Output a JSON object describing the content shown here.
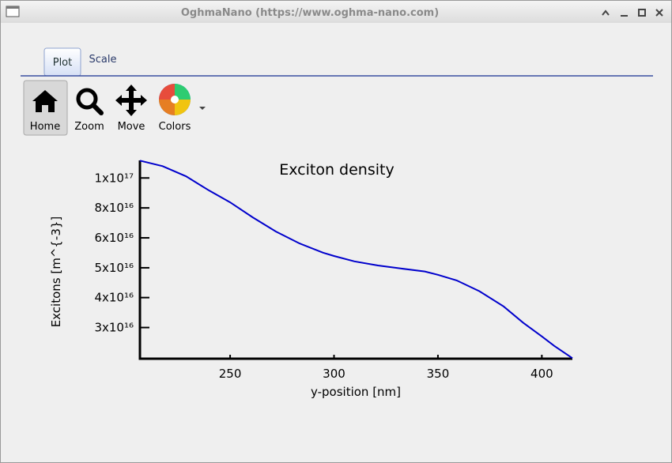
{
  "window": {
    "title": "OghmaNano (https://www.oghma-nano.com)"
  },
  "tabs": [
    "Plot",
    "Scale"
  ],
  "toolbar": [
    "Home",
    "Zoom",
    "Move",
    "Colors"
  ],
  "chart_data": {
    "type": "line",
    "title": "Exciton density",
    "x_label": "y-position [nm]",
    "y_label": "Excitons [m^{-3}]",
    "x": [
      206.6,
      217.5,
      228.8,
      240,
      250,
      260.8,
      272,
      283.4,
      294.7,
      300,
      309.8,
      321.1,
      332.4,
      343.7,
      350,
      359,
      370,
      381.6,
      391,
      400,
      406,
      414.7
    ],
    "values": [
      1.138e+17,
      1.092e+17,
      1.012e+17,
      9.1e+16,
      8.34e+16,
      7.46e+16,
      6.71e+16,
      6.14e+16,
      5.73e+16,
      5.59e+16,
      5.37e+16,
      5.21e+16,
      5.09e+16,
      4.98e+16,
      4.86e+16,
      4.66e+16,
      4.3e+16,
      3.84e+16,
      3.4e+16,
      3.07e+16,
      2.86e+16,
      2.61e+16
    ],
    "color": "#0000cc",
    "xlim": [
      206.6,
      414.7
    ],
    "xticks": [
      250,
      300,
      350,
      400
    ],
    "ylim": [
      2.6e+16,
      1.14e+17
    ],
    "log_y": true,
    "yticks": [
      {
        "value": 1e+17,
        "label": "1x10¹⁷"
      },
      {
        "value": 8e+16,
        "label": "8x10¹⁶"
      },
      {
        "value": 6.4e+16,
        "label": "6x10¹⁶"
      },
      {
        "value": 5.12e+16,
        "label": "5x10¹⁶"
      },
      {
        "value": 4.1e+16,
        "label": "4x10¹⁶"
      },
      {
        "value": 3.28e+16,
        "label": "3x10¹⁶"
      }
    ]
  }
}
